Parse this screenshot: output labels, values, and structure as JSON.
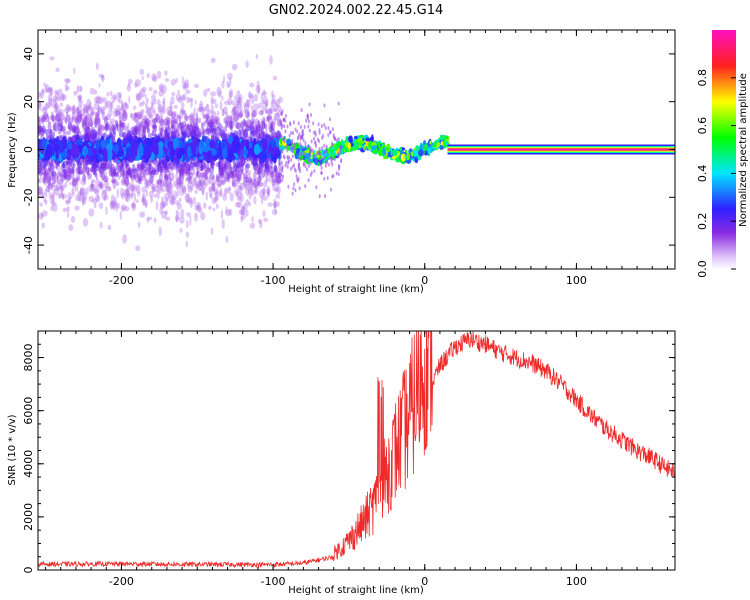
{
  "figure": {
    "title": "GN02.2024.002.22.45.G14"
  },
  "chart_data": [
    {
      "type": "heatmap",
      "xlabel": "Height of straight line (km)",
      "ylabel": "Frequency (Hz)",
      "xlim": [
        -255,
        165
      ],
      "ylim": [
        -50,
        50
      ],
      "xticks": [
        -200,
        -100,
        0,
        100
      ],
      "yticks": [
        -40,
        -20,
        0,
        20,
        40
      ],
      "colorbar": {
        "label": "Normalized spectral amplitude",
        "range": [
          0,
          1
        ],
        "ticks": [
          0.0,
          0.2,
          0.4,
          0.6,
          0.8
        ],
        "colormap": [
          "#ffffff",
          "#8a2be2",
          "#3020ff",
          "#00e5ff",
          "#00ff00",
          "#ffff00",
          "#ff2020",
          "#ff10c0"
        ]
      },
      "description_segments": [
        {
          "x_range": [
            -255,
            -95
          ],
          "frequency_spread_hz": 45,
          "core_amplitude": 0.3
        },
        {
          "x_range": [
            -95,
            15
          ],
          "frequency_spread_hz": 8,
          "core_amplitude": 0.6
        },
        {
          "x_range": [
            15,
            165
          ],
          "frequency_center_hz": 0,
          "core_amplitude": 1.0
        }
      ]
    },
    {
      "type": "line",
      "xlabel": "Height of straight line (km)",
      "ylabel": "SNR (10 * v/v)",
      "xlim": [
        -255,
        165
      ],
      "ylim": [
        0,
        9000
      ],
      "xticks": [
        -200,
        -100,
        0,
        100
      ],
      "yticks": [
        0,
        2000,
        4000,
        6000,
        8000
      ],
      "color": "#ee2a2a",
      "series": [
        {
          "x": [
            -255,
            -200,
            -150,
            -100,
            -80,
            -60,
            -50,
            -40,
            -30,
            -25,
            -20,
            -10,
            0,
            10,
            20,
            30,
            40,
            50,
            60,
            70,
            80,
            90,
            100,
            110,
            120,
            130,
            140,
            150,
            160,
            165
          ],
          "values": [
            220,
            230,
            210,
            200,
            260,
            500,
            900,
            1500,
            2300,
            3000,
            3600,
            4700,
            6400,
            7700,
            8400,
            8700,
            8500,
            8200,
            8000,
            7800,
            7500,
            7000,
            6400,
            5800,
            5300,
            4900,
            4500,
            4200,
            3800,
            3700
          ]
        }
      ]
    }
  ]
}
